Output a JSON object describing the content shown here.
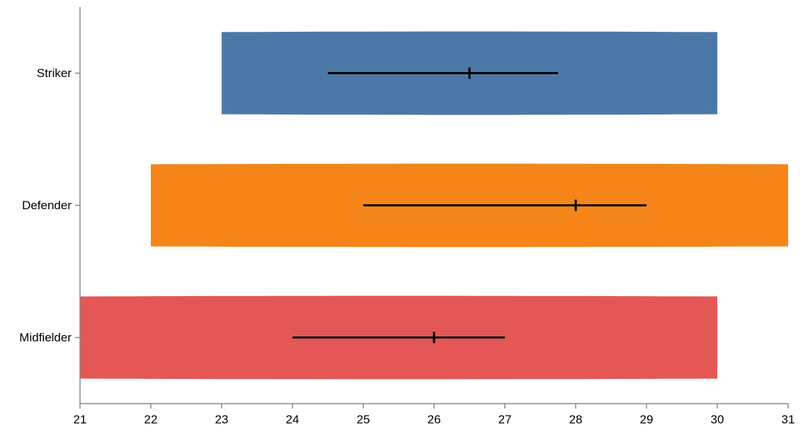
{
  "chart_data": {
    "type": "violin",
    "orientation": "horizontal",
    "title": "",
    "xlabel": "",
    "ylabel": "",
    "xlim": [
      21,
      31
    ],
    "x_ticks": [
      21,
      22,
      23,
      24,
      25,
      26,
      27,
      28,
      29,
      30,
      31
    ],
    "categories": [
      "Striker",
      "Defender",
      "Midfielder"
    ],
    "series": [
      {
        "category": "Striker",
        "color": "#4c78a8",
        "min": 23,
        "max": 30,
        "ci_low": 24.5,
        "ci_high": 27.75,
        "mean": 26.5
      },
      {
        "category": "Defender",
        "color": "#f58518",
        "min": 22,
        "max": 31,
        "ci_low": 25,
        "ci_high": 29,
        "mean": 28
      },
      {
        "category": "Midfielder",
        "color": "#e45756",
        "min": 21,
        "max": 30,
        "ci_low": 24,
        "ci_high": 27,
        "mean": 26
      }
    ]
  }
}
